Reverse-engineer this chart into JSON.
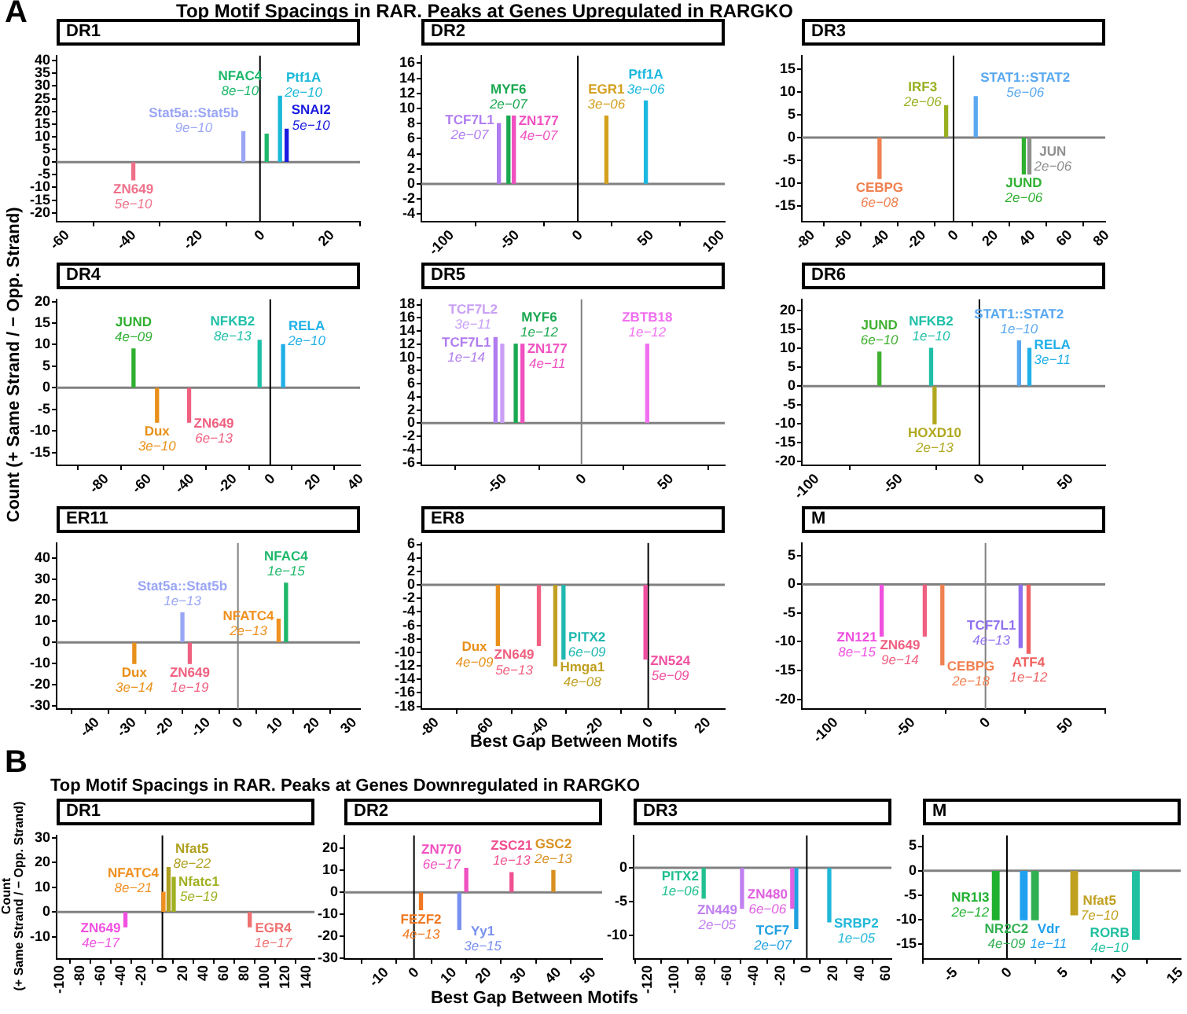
{
  "chart_data": [
    {
      "type": "bar",
      "title": "DR1",
      "annotations": [
        "A",
        "Top Motif Spacings in RAR. Peaks at Genes Upregulated in RARGKO",
        {
          "text": "5e−10",
          "x": -38,
          "y": -7
        },
        {
          "text": "9e−10",
          "x": -5,
          "y": 12
        },
        {
          "text": "8e−10",
          "x": 2,
          "y": 11
        },
        {
          "text": "2e−10",
          "x": 6,
          "y": 26
        },
        {
          "text": "5e−10",
          "x": 8,
          "y": 13
        }
      ],
      "series": [
        {
          "name": "ZN649",
          "color": "#f0708a",
          "x": [
            -38
          ],
          "values": [
            -7
          ]
        },
        {
          "name": "Stat5a::Stat5b",
          "color": "#9aa6f5",
          "x": [
            -5
          ],
          "values": [
            12
          ]
        },
        {
          "name": "NFAC4",
          "color": "#1db86a",
          "x": [
            2
          ],
          "values": [
            11
          ]
        },
        {
          "name": "Ptf1A",
          "color": "#1ab8d8",
          "x": [
            6
          ],
          "values": [
            26
          ]
        },
        {
          "name": "SNAI2",
          "color": "#1a1ae0",
          "x": [
            8
          ],
          "values": [
            13
          ]
        }
      ],
      "xlim": [
        -61,
        30
      ],
      "xticks": [
        -60,
        -40,
        -20,
        0,
        20
      ],
      "ylim": [
        -23.5,
        42
      ],
      "yticks": [
        -20,
        -15,
        -10,
        -5,
        0,
        5,
        10,
        15,
        20,
        25,
        30,
        35,
        40
      ],
      "ref_lines": [
        {
          "axis": "y",
          "value": 0,
          "color": "#808080"
        },
        {
          "axis": "x",
          "value": 0,
          "color": "#000000"
        }
      ]
    },
    {
      "type": "bar",
      "title": "DR2",
      "annotations": [
        {
          "text": "2e−07",
          "x": -58,
          "y": 8
        },
        {
          "text": "2e−07",
          "x": -51,
          "y": 9
        },
        {
          "text": "4e−07",
          "x": -47,
          "y": 9
        },
        {
          "text": "3e−06",
          "x": 21,
          "y": 9
        },
        {
          "text": "3e−06",
          "x": 50,
          "y": 11
        }
      ],
      "series": [
        {
          "name": "TCF7L1",
          "color": "#b07cf0",
          "x": [
            -58
          ],
          "values": [
            8
          ]
        },
        {
          "name": "MYF6",
          "color": "#1aa850",
          "x": [
            -51
          ],
          "values": [
            9
          ]
        },
        {
          "name": "ZN177",
          "color": "#f050c0",
          "x": [
            -47
          ],
          "values": [
            9
          ]
        },
        {
          "name": "EGR1",
          "color": "#d4a020",
          "x": [
            21
          ],
          "values": [
            9
          ]
        },
        {
          "name": "Ptf1A",
          "color": "#1ab8e0",
          "x": [
            50
          ],
          "values": [
            11
          ]
        }
      ],
      "xlim": [
        -115,
        108
      ],
      "xticks": [
        -100,
        -50,
        0,
        50,
        100
      ],
      "ylim": [
        -5,
        17
      ],
      "yticks": [
        -4,
        -2,
        0,
        2,
        4,
        6,
        8,
        10,
        12,
        14,
        16
      ],
      "ref_lines": [
        {
          "axis": "y",
          "value": 0,
          "color": "#808080"
        },
        {
          "axis": "x",
          "value": 0,
          "color": "#000000"
        }
      ]
    },
    {
      "type": "bar",
      "title": "DR3",
      "annotations": [
        {
          "text": "6e−08",
          "x": -40,
          "y": -9
        },
        {
          "text": "2e−06",
          "x": -4,
          "y": 7
        },
        {
          "text": "5e−06",
          "x": 12,
          "y": 9
        },
        {
          "text": "2e−06",
          "x": 38,
          "y": -8
        },
        {
          "text": "2e−06",
          "x": 41,
          "y": -8
        }
      ],
      "series": [
        {
          "name": "CEBPG",
          "color": "#f08050",
          "x": [
            -40
          ],
          "values": [
            -9
          ]
        },
        {
          "name": "IRF3",
          "color": "#98b020",
          "x": [
            -4
          ],
          "values": [
            7
          ]
        },
        {
          "name": "STAT1::STAT2",
          "color": "#5aa8f0",
          "x": [
            12
          ],
          "values": [
            9
          ]
        },
        {
          "name": "JUND",
          "color": "#30b030",
          "x": [
            38
          ],
          "values": [
            -8
          ]
        },
        {
          "name": "JUN",
          "color": "#909090",
          "x": [
            41
          ],
          "values": [
            -8
          ]
        }
      ],
      "xlim": [
        -82,
        82
      ],
      "xticks": [
        -80,
        -60,
        -40,
        -20,
        0,
        20,
        40,
        60,
        80
      ],
      "ylim": [
        -18.5,
        18
      ],
      "yticks": [
        -15,
        -10,
        -5,
        0,
        5,
        10,
        15
      ],
      "ref_lines": [
        {
          "axis": "y",
          "value": 0,
          "color": "#808080"
        },
        {
          "axis": "x",
          "value": 0,
          "color": "#000000"
        }
      ]
    },
    {
      "type": "bar",
      "title": "DR4",
      "ylabel": "Count (+ Same Strand / − Opp. Strand)",
      "annotations": [
        {
          "text": "4e−09",
          "x": -64,
          "y": 9
        },
        {
          "text": "3e−10",
          "x": -53,
          "y": -8
        },
        {
          "text": "6e−13",
          "x": -38,
          "y": -8
        },
        {
          "text": "8e−13",
          "x": -5,
          "y": 11
        },
        {
          "text": "2e−10",
          "x": 6,
          "y": 10
        }
      ],
      "series": [
        {
          "name": "JUND",
          "color": "#30b030",
          "x": [
            -64
          ],
          "values": [
            9
          ]
        },
        {
          "name": "Dux",
          "color": "#e8901a",
          "x": [
            -53
          ],
          "values": [
            -8
          ]
        },
        {
          "name": "ZN649",
          "color": "#f06080",
          "x": [
            -38
          ],
          "values": [
            -8
          ]
        },
        {
          "name": "NFKB2",
          "color": "#20c0a8",
          "x": [
            -5
          ],
          "values": [
            11
          ]
        },
        {
          "name": "RELA",
          "color": "#20b0e8",
          "x": [
            6
          ],
          "values": [
            10
          ]
        }
      ],
      "xlim": [
        -100,
        42
      ],
      "xticks": [
        -80,
        -60,
        -40,
        -20,
        0,
        20,
        40
      ],
      "ylim": [
        -18,
        20.5
      ],
      "yticks": [
        -15,
        -10,
        -5,
        0,
        5,
        10,
        15,
        20
      ],
      "ref_lines": [
        {
          "axis": "y",
          "value": 0,
          "color": "#808080"
        },
        {
          "axis": "x",
          "value": 0,
          "color": "#000000"
        }
      ]
    },
    {
      "type": "bar",
      "title": "DR5",
      "annotations": [
        {
          "text": "1e−14",
          "x": -51,
          "y": 13
        },
        {
          "text": "3e−11",
          "x": -47,
          "y": 12
        },
        {
          "text": "1e−12",
          "x": -39,
          "y": 12
        },
        {
          "text": "4e−11",
          "x": -35,
          "y": 12
        },
        {
          "text": "1e−12",
          "x": 39,
          "y": 12
        }
      ],
      "series": [
        {
          "name": "TCF7L1",
          "color": "#b07cf0",
          "x": [
            -51
          ],
          "values": [
            13
          ]
        },
        {
          "name": "TCF7L2",
          "color": "#c9a0f5",
          "x": [
            -47
          ],
          "values": [
            12
          ]
        },
        {
          "name": "MYF6",
          "color": "#1aa850",
          "x": [
            -39
          ],
          "values": [
            12
          ]
        },
        {
          "name": "ZN177",
          "color": "#f050c0",
          "x": [
            -35
          ],
          "values": [
            12
          ]
        },
        {
          "name": "ZBTB18",
          "color": "#f070f0",
          "x": [
            39
          ],
          "values": [
            12
          ]
        }
      ],
      "xlim": [
        -95,
        85
      ],
      "xticks": [
        -50,
        0,
        50
      ],
      "ylim": [
        -6.4,
        18.8
      ],
      "yticks": [
        -6,
        -4,
        -2,
        0,
        2,
        4,
        6,
        8,
        10,
        12,
        14,
        16,
        18
      ],
      "ref_lines": [
        {
          "axis": "y",
          "value": 0,
          "color": "#808080"
        },
        {
          "axis": "x",
          "value": 0,
          "color": "#808080"
        }
      ]
    },
    {
      "type": "bar",
      "title": "DR6",
      "annotations": [
        {
          "text": "6e−10",
          "x": -58,
          "y": 9
        },
        {
          "text": "1e−10",
          "x": -28,
          "y": 10
        },
        {
          "text": "2e−13",
          "x": -26,
          "y": -10
        },
        {
          "text": "1e−10",
          "x": 23,
          "y": 12
        },
        {
          "text": "3e−11",
          "x": 29,
          "y": 10
        }
      ],
      "series": [
        {
          "name": "JUND",
          "color": "#40b030",
          "x": [
            -58
          ],
          "values": [
            9
          ]
        },
        {
          "name": "NFKB2",
          "color": "#20c0a8",
          "x": [
            -28
          ],
          "values": [
            10
          ]
        },
        {
          "name": "HOXD10",
          "color": "#b0a820",
          "x": [
            -26
          ],
          "values": [
            -10
          ]
        },
        {
          "name": "STAT1::STAT2",
          "color": "#5aa8f0",
          "x": [
            23
          ],
          "values": [
            12
          ]
        },
        {
          "name": "RELA",
          "color": "#20b0e8",
          "x": [
            29
          ],
          "values": [
            10
          ]
        }
      ],
      "xlim": [
        -103,
        73
      ],
      "xticks": [
        -100,
        -50,
        0,
        50
      ],
      "ylim": [
        -21,
        23
      ],
      "yticks": [
        -20,
        -15,
        -10,
        -5,
        0,
        5,
        10,
        15,
        20
      ],
      "ref_lines": [
        {
          "axis": "y",
          "value": 0,
          "color": "#808080"
        },
        {
          "axis": "x",
          "value": 0,
          "color": "#000000"
        }
      ]
    },
    {
      "type": "bar",
      "title": "ER11",
      "annotations": [
        {
          "text": "3e−14",
          "x": -28,
          "y": -10
        },
        {
          "text": "1e−13",
          "x": -15,
          "y": 14
        },
        {
          "text": "1e−19",
          "x": -13,
          "y": -10
        },
        {
          "text": "1e−15",
          "x": 13,
          "y": 28
        },
        {
          "text": "2e−13",
          "x": 11,
          "y": 11
        }
      ],
      "series": [
        {
          "name": "Dux",
          "color": "#e8901a",
          "x": [
            -28
          ],
          "values": [
            -10
          ]
        },
        {
          "name": "Stat5a::Stat5b",
          "color": "#9aa6f5",
          "x": [
            -15
          ],
          "values": [
            14
          ]
        },
        {
          "name": "ZN649",
          "color": "#f06080",
          "x": [
            -13
          ],
          "values": [
            -10
          ]
        },
        {
          "name": "NFAC4",
          "color": "#1db86a",
          "x": [
            13
          ],
          "values": [
            28
          ]
        },
        {
          "name": "NFATC4",
          "color": "#f09020",
          "x": [
            11
          ],
          "values": [
            11
          ]
        }
      ],
      "xlim": [
        -49,
        33
      ],
      "xticks": [
        -40,
        -30,
        -20,
        -10,
        0,
        10,
        20,
        30
      ],
      "ylim": [
        -31.5,
        47
      ],
      "yticks": [
        -30,
        -20,
        -10,
        0,
        10,
        20,
        30,
        40
      ],
      "ref_lines": [
        {
          "axis": "y",
          "value": 0,
          "color": "#808080"
        },
        {
          "axis": "x",
          "value": 0,
          "color": "#808080"
        }
      ]
    },
    {
      "type": "bar",
      "title": "ER8",
      "xlabel": "Best Gap Between Motifs",
      "annotations": [
        {
          "text": "4e−09",
          "x": -55,
          "y": -9
        },
        {
          "text": "5e−13",
          "x": -40,
          "y": -9
        },
        {
          "text": "4e−08",
          "x": -34,
          "y": -12
        },
        {
          "text": "6e−09",
          "x": -31,
          "y": -11
        },
        {
          "text": "5e−09",
          "x": -1,
          "y": -11
        }
      ],
      "series": [
        {
          "name": "Dux",
          "color": "#e8901a",
          "x": [
            -55
          ],
          "values": [
            -9
          ]
        },
        {
          "name": "ZN649",
          "color": "#f06080",
          "x": [
            -40
          ],
          "values": [
            -9
          ]
        },
        {
          "name": "Hmga1",
          "color": "#c0a020",
          "x": [
            -34
          ],
          "values": [
            -12
          ]
        },
        {
          "name": "PITX2",
          "color": "#20b8b0",
          "x": [
            -31
          ],
          "values": [
            -11
          ]
        },
        {
          "name": "ZN524",
          "color": "#f050a0",
          "x": [
            -1
          ],
          "values": [
            -11
          ]
        }
      ],
      "xlim": [
        -83,
        28
      ],
      "xticks": [
        -80,
        -60,
        -40,
        -20,
        0,
        20
      ],
      "ylim": [
        -18.4,
        6.2
      ],
      "yticks": [
        -18,
        -16,
        -14,
        -12,
        -10,
        -8,
        -6,
        -4,
        -2,
        0,
        2,
        4,
        6
      ],
      "ref_lines": [
        {
          "axis": "y",
          "value": 0,
          "color": "#808080"
        },
        {
          "axis": "x",
          "value": 0,
          "color": "#000000"
        }
      ]
    },
    {
      "type": "bar",
      "title": "M",
      "annotations": [
        {
          "text": "8e−15",
          "x": -65,
          "y": -9
        },
        {
          "text": "9e−14",
          "x": -38,
          "y": -9
        },
        {
          "text": "2e−18",
          "x": -27,
          "y": -14
        },
        {
          "text": "4e−13",
          "x": 22,
          "y": -11
        },
        {
          "text": "1e−12",
          "x": 27,
          "y": -12
        }
      ],
      "series": [
        {
          "name": "ZN121",
          "color": "#f050e0",
          "x": [
            -65
          ],
          "values": [
            -9
          ]
        },
        {
          "name": "ZN649",
          "color": "#f06080",
          "x": [
            -38
          ],
          "values": [
            -9
          ]
        },
        {
          "name": "CEBPG",
          "color": "#f08050",
          "x": [
            -27
          ],
          "values": [
            -14
          ]
        },
        {
          "name": "TCF7L1",
          "color": "#9070f0",
          "x": [
            22
          ],
          "values": [
            -11
          ]
        },
        {
          "name": "ATF4",
          "color": "#f06060",
          "x": [
            27
          ],
          "values": [
            -12
          ]
        }
      ],
      "xlim": [
        -115,
        75
      ],
      "xticks": [
        -100,
        -50,
        0,
        50
      ],
      "ylim": [
        -21.7,
        7.2
      ],
      "yticks": [
        -20,
        -15,
        -10,
        -5,
        0,
        5
      ],
      "ref_lines": [
        {
          "axis": "y",
          "value": 0,
          "color": "#808080"
        },
        {
          "axis": "x",
          "value": 0,
          "color": "#808080"
        }
      ]
    },
    {
      "type": "bar",
      "title": "DR1",
      "ylabel": "Count\n(+ Same Strand / − Opp. Strand)",
      "annotations": [
        "B",
        "Top Motif Spacings in RAR. Peaks at Genes Downregulated in RARGKO",
        {
          "text": "4e−17",
          "x": -36,
          "y": -6
        },
        {
          "text": "8e−21",
          "x": 1,
          "y": 8
        },
        {
          "text": "8e−22",
          "x": 6,
          "y": 18
        },
        {
          "text": "5e−19",
          "x": 11,
          "y": 14
        },
        {
          "text": "1e−17",
          "x": 85,
          "y": -6
        }
      ],
      "series": [
        {
          "name": "ZN649",
          "color": "#f050e0",
          "x": [
            -36
          ],
          "values": [
            -6
          ]
        },
        {
          "name": "NFATC4",
          "color": "#f09020",
          "x": [
            1
          ],
          "values": [
            8
          ]
        },
        {
          "name": "Nfat5",
          "color": "#b0a020",
          "x": [
            6
          ],
          "values": [
            18
          ]
        },
        {
          "name": "Nfatc1",
          "color": "#a0b020",
          "x": [
            11
          ],
          "values": [
            14
          ]
        },
        {
          "name": "EGR4",
          "color": "#f07070",
          "x": [
            85
          ],
          "values": [
            -6
          ]
        }
      ],
      "xlim": [
        -103,
        148
      ],
      "xticks": [
        -100,
        -80,
        -60,
        -40,
        -20,
        0,
        20,
        40,
        60,
        80,
        100,
        120,
        140
      ],
      "ylim": [
        -19,
        31
      ],
      "yticks": [
        -10,
        0,
        10,
        20,
        30
      ],
      "ref_lines": [
        {
          "axis": "y",
          "value": 0,
          "color": "#808080"
        },
        {
          "axis": "x",
          "value": 0,
          "color": "#000000"
        }
      ]
    },
    {
      "type": "bar",
      "title": "DR2",
      "xlabel": "Best Gap Between Motifs",
      "annotations": [
        {
          "text": "4e−13",
          "x": 2,
          "y": -8
        },
        {
          "text": "3e−15",
          "x": 13,
          "y": -17
        },
        {
          "text": "6e−17",
          "x": 15,
          "y": 11
        },
        {
          "text": "1e−13",
          "x": 28,
          "y": 9
        },
        {
          "text": "2e−13",
          "x": 40,
          "y": 10
        }
      ],
      "series": [
        {
          "name": "FEZF2",
          "color": "#f07820",
          "x": [
            2
          ],
          "values": [
            -8
          ]
        },
        {
          "name": "Yy1",
          "color": "#7890f0",
          "x": [
            13
          ],
          "values": [
            -17
          ]
        },
        {
          "name": "ZN770",
          "color": "#f050c0",
          "x": [
            15
          ],
          "values": [
            11
          ]
        },
        {
          "name": "ZSC21",
          "color": "#f05090",
          "x": [
            28
          ],
          "values": [
            9
          ]
        },
        {
          "name": "GSC2",
          "color": "#d89020",
          "x": [
            40
          ],
          "values": [
            10
          ]
        }
      ],
      "xlim": [
        -20,
        54
      ],
      "xticks": [
        -10,
        0,
        10,
        20,
        30,
        40,
        50
      ],
      "ylim": [
        -30.5,
        26
      ],
      "yticks": [
        -30,
        -20,
        -10,
        0,
        10,
        20
      ],
      "ref_lines": [
        {
          "axis": "y",
          "value": 0,
          "color": "#808080"
        },
        {
          "axis": "x",
          "value": 0,
          "color": "#000000"
        }
      ]
    },
    {
      "type": "bar",
      "title": "DR3",
      "annotations": [
        {
          "text": "1e−06",
          "x": -78,
          "y": -4.5
        },
        {
          "text": "2e−05",
          "x": -49,
          "y": -6
        },
        {
          "text": "6e−06",
          "x": -11,
          "y": -6
        },
        {
          "text": "2e−07",
          "x": -8,
          "y": -9
        },
        {
          "text": "1e−05",
          "x": 17,
          "y": -8
        }
      ],
      "series": [
        {
          "name": "PITX2",
          "color": "#20c090",
          "x": [
            -78
          ],
          "values": [
            -4.5
          ]
        },
        {
          "name": "ZN449",
          "color": "#c080f0",
          "x": [
            -49
          ],
          "values": [
            -6
          ]
        },
        {
          "name": "ZN480",
          "color": "#e060e0",
          "x": [
            -11
          ],
          "values": [
            -6
          ]
        },
        {
          "name": "TCF7",
          "color": "#20a0e0",
          "x": [
            -8
          ],
          "values": [
            -9
          ]
        },
        {
          "name": "SRBP2",
          "color": "#20b8d8",
          "x": [
            17
          ],
          "values": [
            -8
          ]
        }
      ],
      "xlim": [
        -131,
        64
      ],
      "xticks": [
        -120,
        -100,
        -80,
        -60,
        -40,
        -20,
        0,
        20,
        40,
        60
      ],
      "ylim": [
        -13.5,
        4.8
      ],
      "yticks": [
        -10,
        -5,
        0
      ],
      "ref_lines": [
        {
          "axis": "y",
          "value": 0,
          "color": "#808080"
        },
        {
          "axis": "x",
          "value": 0,
          "color": "#000000"
        }
      ]
    },
    {
      "type": "bar",
      "title": "M",
      "annotations": [
        {
          "text": "2e−12",
          "x": -1,
          "y": -10
        },
        {
          "text": "1e−11",
          "x": 1.5,
          "y": -10
        },
        {
          "text": "4e−09",
          "x": 2.5,
          "y": -10
        },
        {
          "text": "7e−10",
          "x": 6,
          "y": -9
        },
        {
          "text": "4e−10",
          "x": 11.5,
          "y": -14
        }
      ],
      "series": [
        {
          "name": "NR1I3",
          "color": "#20b030",
          "x": [
            -1
          ],
          "values": [
            -10
          ]
        },
        {
          "name": "Vdr",
          "color": "#20a0f0",
          "x": [
            1.5
          ],
          "values": [
            -10
          ]
        },
        {
          "name": "NR2C2",
          "color": "#30b050",
          "x": [
            2.5
          ],
          "values": [
            -10
          ]
        },
        {
          "name": "Nfat5",
          "color": "#c0a020",
          "x": [
            6
          ],
          "values": [
            -9
          ]
        },
        {
          "name": "RORB",
          "color": "#20c0a0",
          "x": [
            11.5
          ],
          "values": [
            -14
          ]
        }
      ],
      "xlim": [
        -7.5,
        15.5
      ],
      "xticks": [
        -5,
        0,
        5,
        10,
        15
      ],
      "ylim": [
        -18,
        7.2
      ],
      "yticks": [
        -15,
        -10,
        -5,
        0,
        5
      ],
      "ref_lines": [
        {
          "axis": "y",
          "value": 0,
          "color": "#808080"
        },
        {
          "axis": "x",
          "value": 0,
          "color": "#000000"
        }
      ]
    }
  ]
}
